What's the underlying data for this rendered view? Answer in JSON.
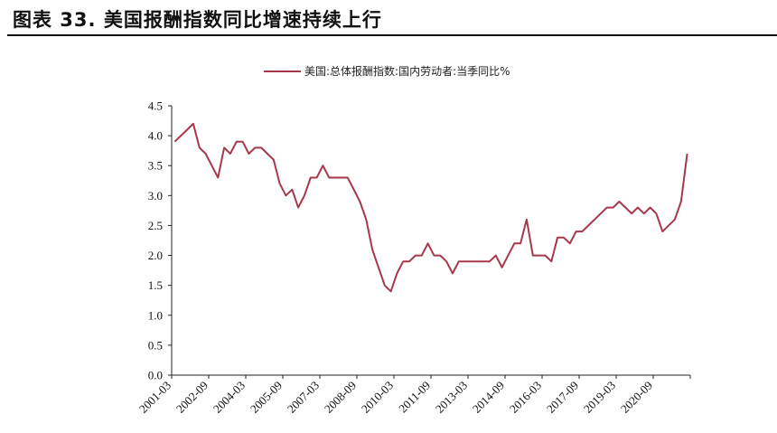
{
  "figure_title": "图表 33. 美国报酬指数同比增速持续上行",
  "chart_data": {
    "type": "line",
    "title": "",
    "xlabel": "",
    "ylabel": "",
    "ylim": [
      0,
      4.5
    ],
    "yticks": [
      "4.5",
      "4.0",
      "3.5",
      "3.0",
      "2.5",
      "2.0",
      "1.5",
      "1.0",
      "0.5",
      "0.0"
    ],
    "x_start": "2001-03",
    "x_step_months": 3,
    "xtick_labels": [
      "2001-03",
      "2002-09",
      "2004-03",
      "2005-09",
      "2007-03",
      "2008-09",
      "2010-03",
      "2011-09",
      "2013-03",
      "2014-09",
      "2016-03",
      "2017-09",
      "2019-03",
      "2020-09"
    ],
    "legend_position": "top",
    "grid": false,
    "color": "#A7384A",
    "series": [
      {
        "name": "美国:总体报酬指数:国内劳动者:当季同比%",
        "values": [
          3.9,
          4.0,
          4.1,
          4.2,
          3.8,
          3.7,
          3.5,
          3.3,
          3.8,
          3.7,
          3.9,
          3.9,
          3.7,
          3.8,
          3.8,
          3.7,
          3.6,
          3.2,
          3.0,
          3.1,
          2.8,
          3.0,
          3.3,
          3.3,
          3.5,
          3.3,
          3.3,
          3.3,
          3.3,
          3.1,
          2.9,
          2.6,
          2.1,
          1.8,
          1.5,
          1.4,
          1.7,
          1.9,
          1.9,
          2.0,
          2.0,
          2.2,
          2.0,
          2.0,
          1.9,
          1.7,
          1.9,
          1.9,
          1.9,
          1.9,
          1.9,
          1.9,
          2.0,
          1.8,
          2.0,
          2.2,
          2.2,
          2.6,
          2.0,
          2.0,
          2.0,
          1.9,
          2.3,
          2.3,
          2.2,
          2.4,
          2.4,
          2.5,
          2.6,
          2.7,
          2.8,
          2.8,
          2.9,
          2.8,
          2.7,
          2.8,
          2.7,
          2.8,
          2.7,
          2.4,
          2.5,
          2.6,
          2.9,
          3.7
        ]
      }
    ]
  }
}
